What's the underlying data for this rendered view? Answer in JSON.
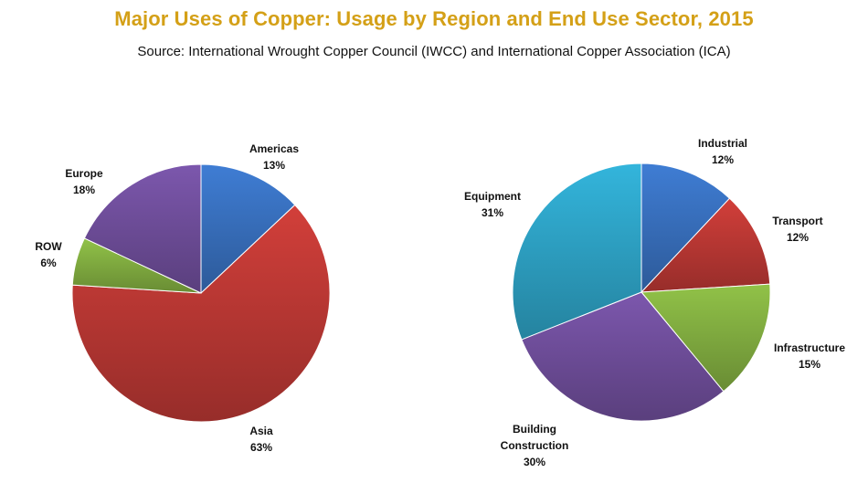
{
  "title": "Major Uses of Copper: Usage by Region and End Use Sector, 2015",
  "subtitle": "Source: International Wrought Copper Council (IWCC) and International Copper Association (ICA)",
  "chart_data": [
    {
      "type": "pie",
      "title": "",
      "slices": [
        {
          "label": "Americas",
          "value": 13,
          "value_label": "13%",
          "color": "#3a74c4"
        },
        {
          "label": "Asia",
          "value": 63,
          "value_label": "63%",
          "color": "#c23a36"
        },
        {
          "label": "ROW",
          "value": 6,
          "value_label": "6%",
          "color": "#86b443"
        },
        {
          "label": "Europe",
          "value": 18,
          "value_label": "18%",
          "color": "#7351a0"
        }
      ]
    },
    {
      "type": "pie",
      "title": "",
      "slices": [
        {
          "label": "Industrial",
          "value": 12,
          "value_label": "12%",
          "color": "#3a74c4"
        },
        {
          "label": "Transport",
          "value": 12,
          "value_label": "12%",
          "color": "#c23a36"
        },
        {
          "label": "Infrastructure",
          "value": 15,
          "value_label": "15%",
          "color": "#86b443"
        },
        {
          "label": "Building Construction",
          "value": 30,
          "value_label": "30%",
          "color": "#7351a0"
        },
        {
          "label": "Equipment",
          "value": 31,
          "value_label": "31%",
          "color": "#2fa8cc"
        }
      ]
    }
  ]
}
